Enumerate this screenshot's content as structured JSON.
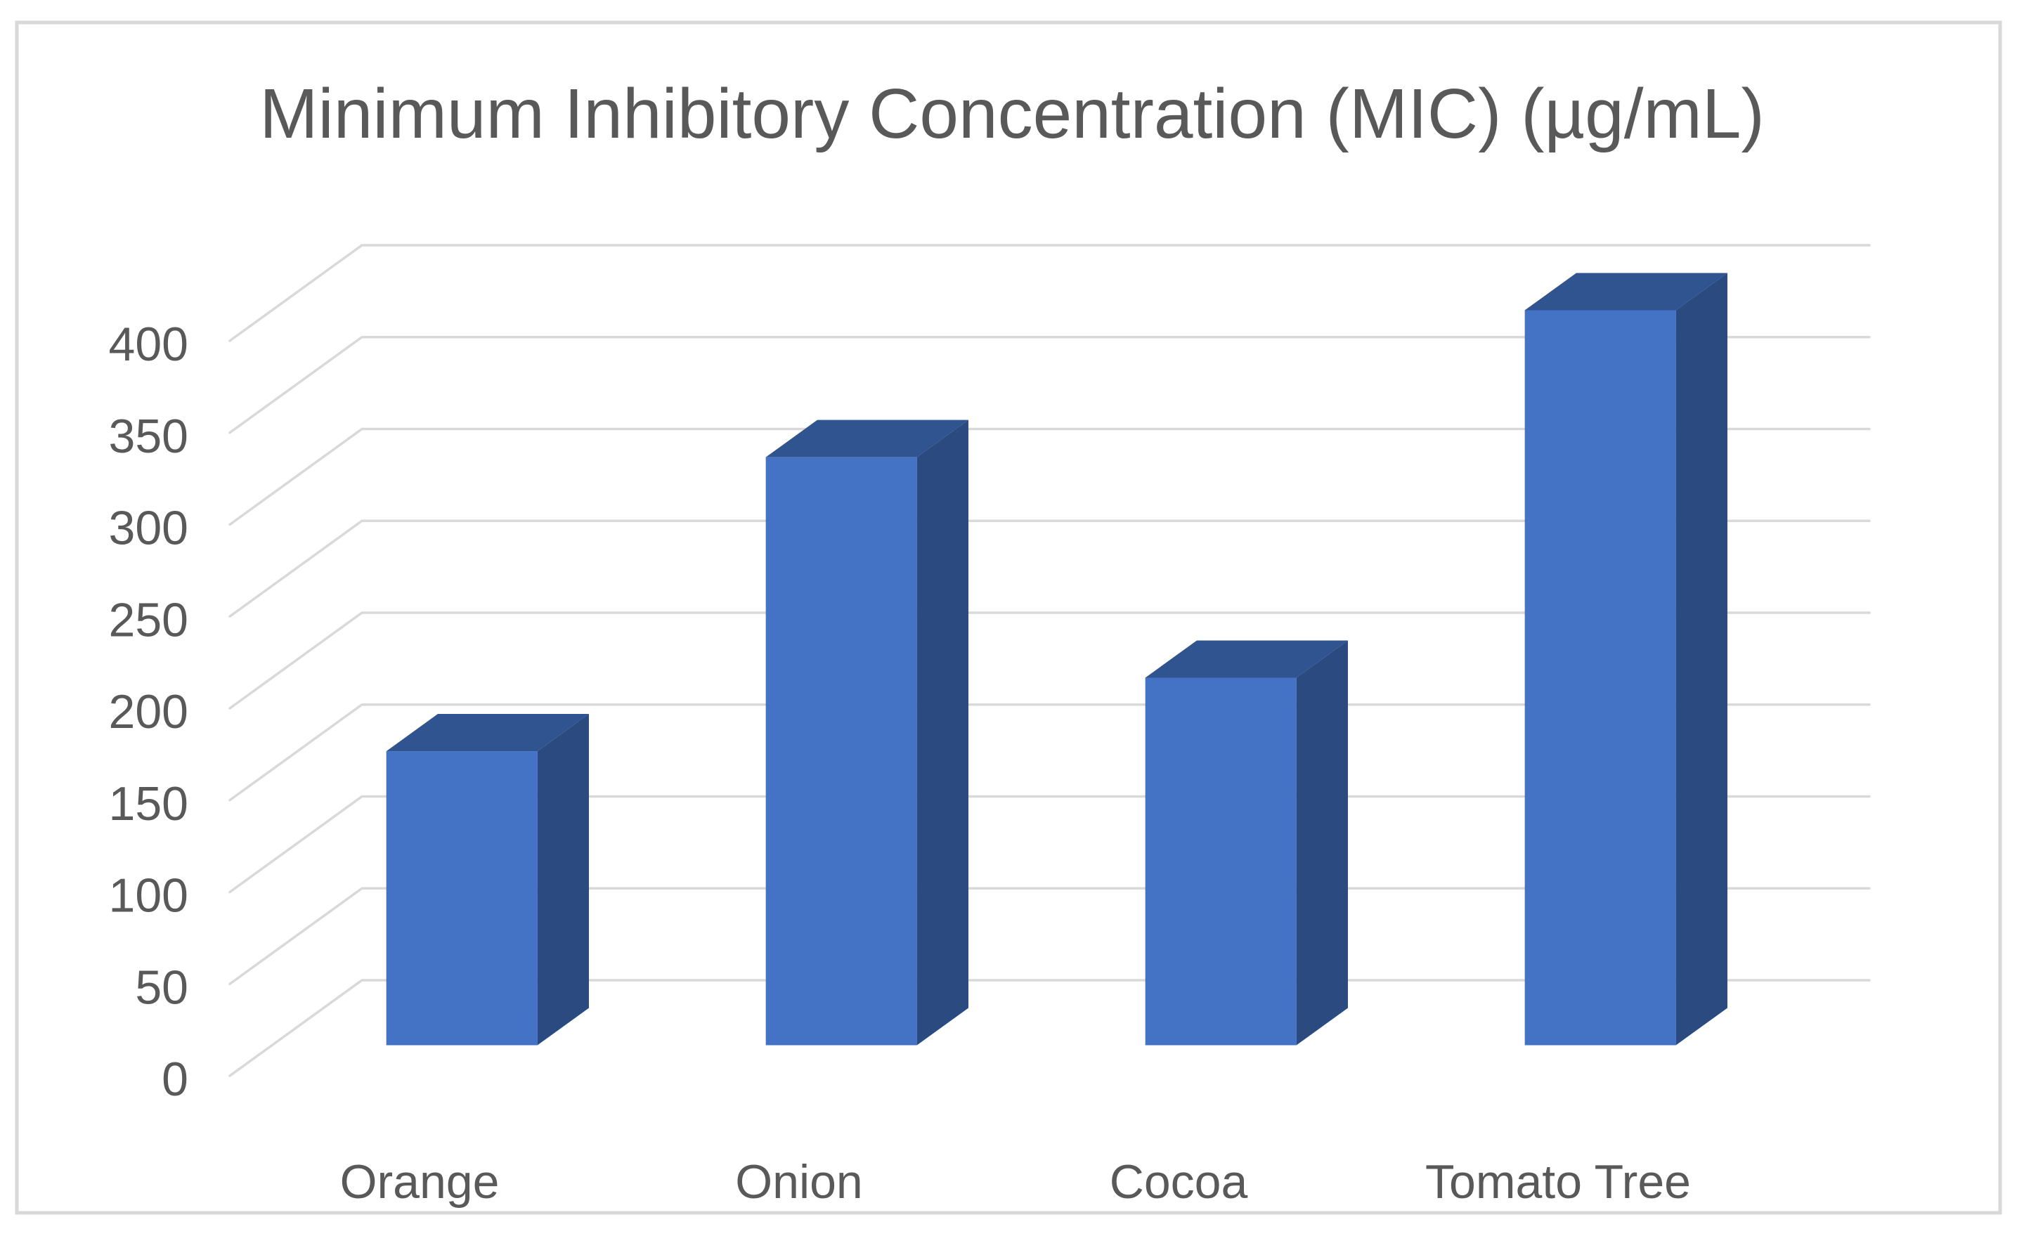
{
  "window": {
    "background": "#ffffff",
    "frame_border_color": "#d8d8d8"
  },
  "chart_data": {
    "type": "bar",
    "style": "3d-column",
    "title": "Minimum Inhibitory Concentration (MIC) (µg/mL)",
    "categories": [
      "Orange",
      "Onion",
      "Cocoa",
      "Tomato Tree"
    ],
    "values": [
      160,
      320,
      200,
      400
    ],
    "xlabel": "",
    "ylabel": "",
    "ylim": [
      0,
      400
    ],
    "ytick_step": 50,
    "yticks": [
      0,
      50,
      100,
      150,
      200,
      250,
      300,
      350,
      400
    ],
    "grid": true,
    "legend": false,
    "colors": {
      "bar_front": "#4472c4",
      "bar_side": "#2b4a80",
      "bar_top": "#2f5490",
      "gridline": "#d9d9d9",
      "axis_text": "#595959",
      "title_text": "#595959"
    }
  }
}
